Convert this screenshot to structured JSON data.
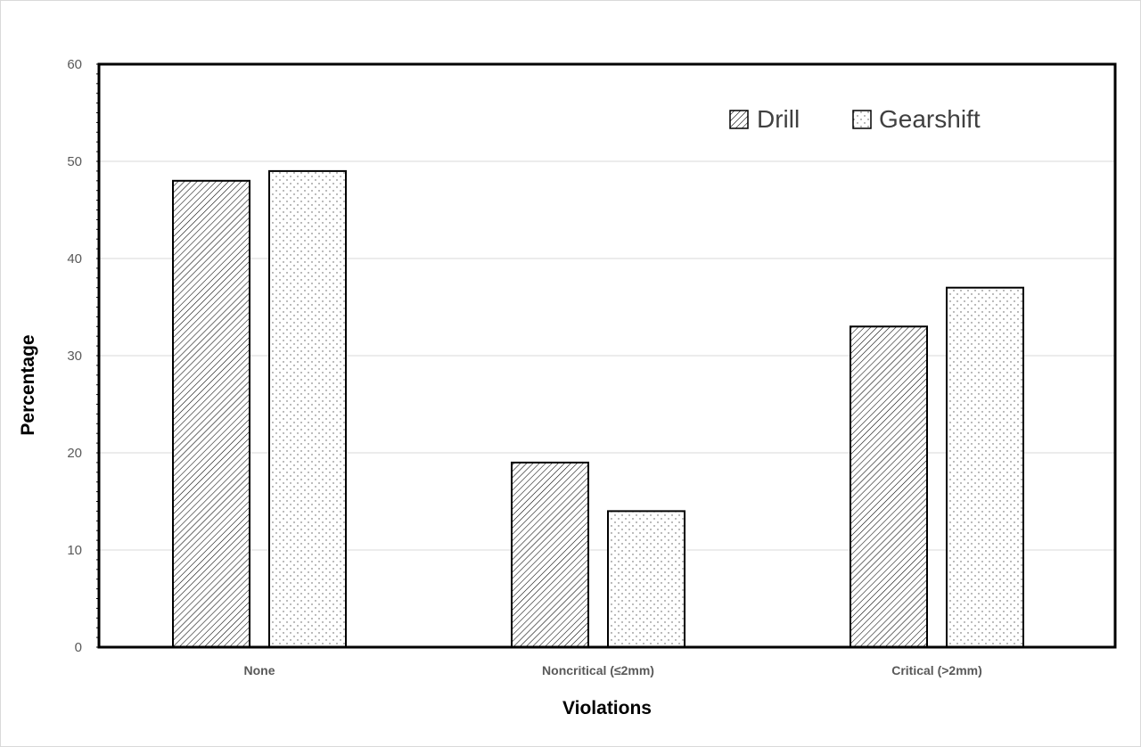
{
  "chart_data": {
    "type": "bar",
    "title": "",
    "xlabel": "Violations",
    "ylabel": "Percentage",
    "categories": [
      "None",
      "Noncritical (≤2mm)",
      "Critical (>2mm)"
    ],
    "series": [
      {
        "name": "Drill",
        "values": [
          48,
          19,
          33
        ],
        "pattern": "diagonal-hatch"
      },
      {
        "name": "Gearshift",
        "values": [
          49,
          14,
          37
        ],
        "pattern": "dots"
      }
    ],
    "ylim": [
      0,
      60
    ],
    "yticks": [
      0,
      10,
      20,
      30,
      40,
      50,
      60
    ],
    "grid": true,
    "legend_position": "top-right",
    "colors": {
      "bar_fill": "#ffffff",
      "bar_stroke": "#000000",
      "grid": "#d9d9d9",
      "tick_text": "#595959"
    }
  }
}
